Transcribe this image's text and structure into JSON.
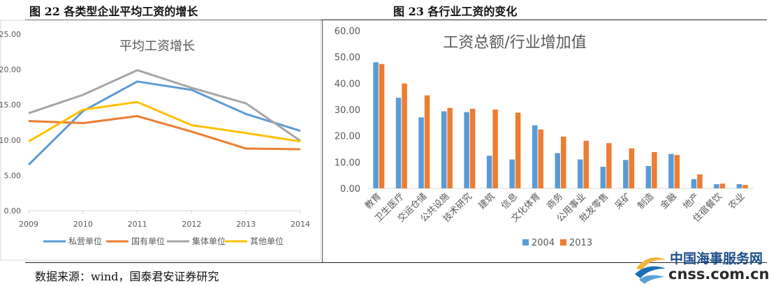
{
  "figures": {
    "left_title": "图 22  各类型企业平均工资的增长",
    "right_title": "图 23  各行业工资的变化"
  },
  "source_text": "数据来源：wind，国泰君安证券研究",
  "watermark": {
    "name": "中国海事服务网",
    "url": "cnss.com.cn"
  },
  "colors": {
    "blue": "#5b9bd5",
    "orange": "#ed7d31",
    "gray": "#a5a5a5",
    "yellow": "#ffc000"
  },
  "chart_data": [
    {
      "type": "line",
      "title": "平均工资增长",
      "x": [
        "2009",
        "2010",
        "2011",
        "2012",
        "2013",
        "2014"
      ],
      "yticks": [
        "0.00",
        "5.00",
        "10.00",
        "15.00",
        "20.00",
        "25.00"
      ],
      "ylim": [
        0,
        25
      ],
      "grid": false,
      "legend_position": "bottom",
      "series": [
        {
          "name": "私营单位",
          "color": "#5b9bd5",
          "values": [
            6.5,
            14.1,
            18.3,
            17.1,
            13.7,
            11.3
          ]
        },
        {
          "name": "国有单位",
          "color": "#ed7d31",
          "values": [
            12.7,
            12.4,
            13.4,
            11.2,
            8.8,
            8.7
          ]
        },
        {
          "name": "集体单位",
          "color": "#a5a5a5",
          "values": [
            13.8,
            16.4,
            19.9,
            17.4,
            15.2,
            9.9
          ]
        },
        {
          "name": "其他单位",
          "color": "#ffc000",
          "values": [
            9.8,
            14.3,
            15.4,
            12.1,
            11.0,
            9.8
          ]
        }
      ]
    },
    {
      "type": "bar",
      "title": "工资总额/行业增加值",
      "categories": [
        "教育",
        "卫生医疗",
        "交运仓储",
        "公共设施",
        "技术研究",
        "建筑",
        "信息",
        "文化体育",
        "商务",
        "公用事业",
        "批发零售",
        "采矿",
        "制造",
        "金融",
        "地产",
        "住宿餐饮",
        "农业"
      ],
      "yticks": [
        "0.00",
        "10.00",
        "20.00",
        "30.00",
        "40.00",
        "50.00",
        "60.00"
      ],
      "ylim": [
        0,
        60
      ],
      "grid": false,
      "legend_position": "bottom",
      "series": [
        {
          "name": "2004",
          "color": "#5b9bd5",
          "values": [
            48.0,
            34.5,
            27.0,
            29.3,
            29.0,
            12.4,
            11.0,
            24.0,
            13.4,
            11.0,
            8.2,
            10.8,
            8.5,
            13.1,
            3.5,
            1.6,
            1.6
          ]
        },
        {
          "name": "2013",
          "color": "#ed7d31",
          "values": [
            47.3,
            39.9,
            35.4,
            30.6,
            30.3,
            30.0,
            28.8,
            22.4,
            19.7,
            18.1,
            17.2,
            15.2,
            13.8,
            12.7,
            5.3,
            1.8,
            1.3
          ]
        }
      ]
    }
  ]
}
